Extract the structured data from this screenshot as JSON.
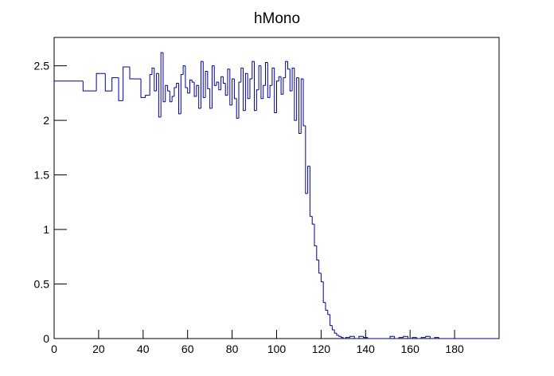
{
  "chart_data": {
    "type": "histogram",
    "title": "hMono",
    "color": "#000099",
    "bins": [
      0,
      13,
      19,
      23,
      26,
      29,
      31,
      34,
      37,
      39,
      41,
      43,
      44,
      45,
      46,
      47,
      48,
      49,
      50,
      51,
      52,
      53,
      54,
      55,
      56,
      57,
      58,
      59,
      60,
      61,
      62,
      63,
      64,
      65,
      66,
      67,
      68,
      69,
      70,
      71,
      72,
      73,
      74,
      75,
      76,
      77,
      78,
      79,
      80,
      81,
      82,
      83,
      84,
      85,
      86,
      87,
      88,
      89,
      90,
      91,
      92,
      93,
      94,
      95,
      96,
      97,
      98,
      99,
      100,
      101,
      102,
      103,
      104,
      105,
      106,
      107,
      108,
      109,
      110,
      111,
      112,
      113,
      114,
      115,
      116,
      117,
      118,
      119,
      120,
      121,
      122,
      123,
      124,
      125,
      126,
      127,
      128,
      129,
      130,
      131,
      133,
      135,
      137,
      139,
      141,
      143,
      145,
      147,
      149,
      151,
      153,
      155,
      157,
      159,
      161,
      163,
      165,
      167,
      169,
      171,
      173,
      175,
      200
    ],
    "values": [
      2.36,
      2.27,
      2.43,
      2.27,
      2.39,
      2.18,
      2.49,
      2.38,
      2.38,
      2.21,
      2.23,
      2.42,
      2.48,
      2.27,
      2.43,
      2.03,
      2.62,
      2.17,
      2.32,
      2.27,
      2.17,
      2.22,
      2.3,
      2.34,
      2.06,
      2.42,
      2.5,
      2.3,
      2.25,
      2.37,
      2.35,
      2.22,
      2.32,
      2.11,
      2.54,
      2.21,
      2.45,
      2.29,
      2.11,
      2.5,
      2.32,
      2.35,
      2.28,
      2.4,
      2.34,
      2.23,
      2.47,
      2.14,
      2.38,
      2.2,
      2.02,
      2.35,
      2.48,
      2.09,
      2.43,
      2.2,
      2.38,
      2.54,
      2.09,
      2.28,
      2.5,
      2.2,
      2.32,
      2.53,
      2.21,
      2.32,
      2.48,
      2.07,
      2.36,
      2.4,
      2.24,
      2.39,
      2.54,
      2.47,
      2.27,
      2.48,
      2.0,
      2.39,
      1.88,
      2.38,
      1.95,
      1.33,
      1.58,
      1.12,
      1.05,
      0.85,
      0.72,
      0.6,
      0.52,
      0.33,
      0.26,
      0.22,
      0.12,
      0.08,
      0.05,
      0.03,
      0.02,
      0.01,
      0,
      0.01,
      0.02,
      0,
      0.02,
      0.01,
      0,
      0,
      0,
      0,
      0,
      0.02,
      0,
      0.01,
      0.02,
      0,
      0.01,
      0,
      0.01,
      0.02,
      0,
      0.01,
      0,
      0
    ],
    "xlim": [
      0,
      200
    ],
    "ylim": [
      0,
      2.76
    ],
    "xticks": [
      0,
      20,
      40,
      60,
      80,
      100,
      120,
      140,
      160,
      180
    ],
    "yticks": [
      0,
      0.5,
      1,
      1.5,
      2,
      2.5
    ]
  }
}
